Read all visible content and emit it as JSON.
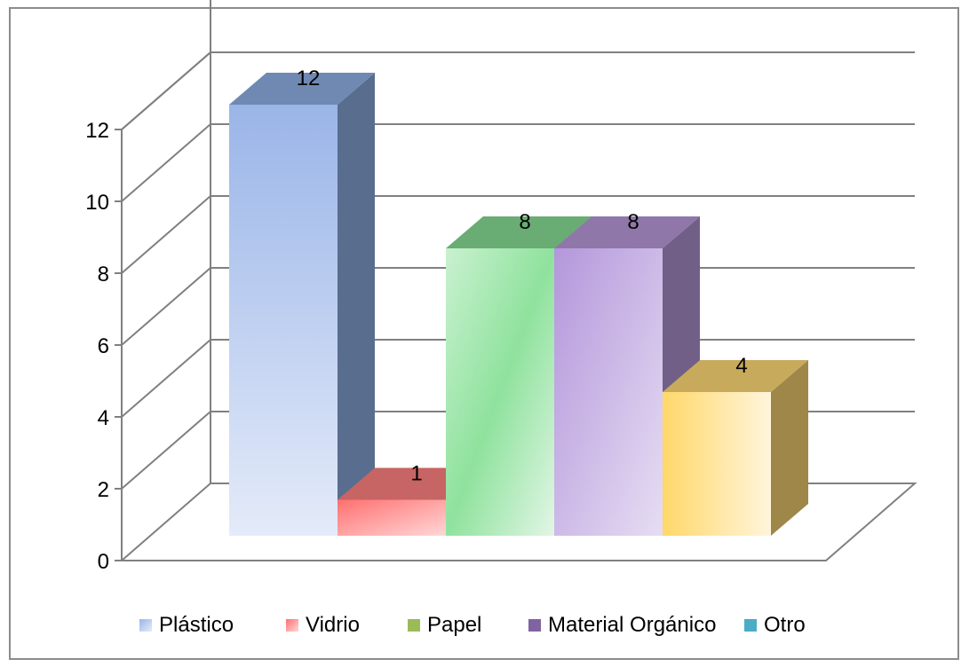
{
  "chart_data": {
    "type": "bar",
    "three_d": true,
    "categories": [
      "Plástico",
      "Vidrio",
      "Papel",
      "Material Orgánico",
      "Otro"
    ],
    "values": [
      12,
      1,
      8,
      8,
      4
    ],
    "series": [
      {
        "name": "Plástico",
        "value": 12,
        "color": "#8fb0e6"
      },
      {
        "name": "Vidrio",
        "value": 1,
        "color": "#ff8080"
      },
      {
        "name": "Papel",
        "value": 8,
        "color": "#9bbb59"
      },
      {
        "name": "Material Orgánico",
        "value": 8,
        "color": "#8064a2"
      },
      {
        "name": "Otro",
        "value": 4,
        "color": "#4bacc6"
      }
    ],
    "bar_colors": [
      "#8fb0e6",
      "#ff8080",
      "#86dd95",
      "#b79ad9",
      "#ffda75"
    ],
    "data_labels": [
      "12",
      "1",
      "8",
      "8",
      "4"
    ],
    "ylim": [
      0,
      12
    ],
    "y_ticks": [
      "0",
      "2",
      "4",
      "6",
      "8",
      "10",
      "12"
    ],
    "grid": true,
    "legend_position": "bottom"
  }
}
